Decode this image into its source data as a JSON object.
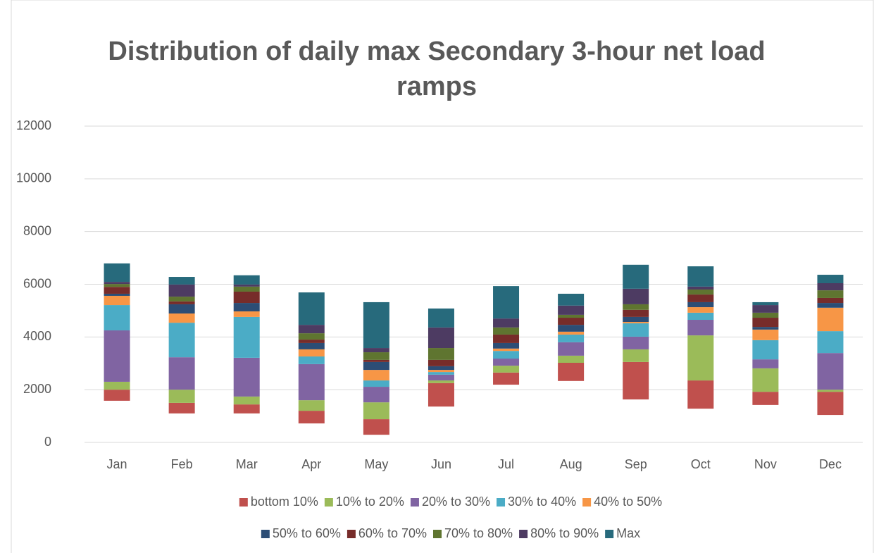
{
  "chart_data": {
    "type": "floating_stacked_bar",
    "title": "Distribution of daily max Secondary 3-hour net load ramps",
    "categories": [
      "Jan",
      "Feb",
      "Mar",
      "Apr",
      "May",
      "Jun",
      "Jul",
      "Aug",
      "Sep",
      "Oct",
      "Nov",
      "Dec"
    ],
    "base": [
      1580,
      1100,
      1100,
      720,
      290,
      1360,
      2190,
      2330,
      1630,
      1280,
      1420,
      1040
    ],
    "series": [
      {
        "name": "bottom 10%",
        "color": "#c0504d",
        "values": [
          420,
          400,
          340,
          480,
          590,
          890,
          460,
          690,
          1420,
          1070,
          500,
          880
        ]
      },
      {
        "name": "10% to 20%",
        "color": "#9bbb59",
        "values": [
          300,
          500,
          300,
          400,
          640,
          100,
          260,
          270,
          480,
          1710,
          890,
          80
        ]
      },
      {
        "name": "20% to 30%",
        "color": "#8064a2",
        "values": [
          1950,
          1230,
          1470,
          1370,
          590,
          220,
          270,
          510,
          480,
          590,
          340,
          1390
        ]
      },
      {
        "name": "30% to 40%",
        "color": "#4bacc6",
        "values": [
          960,
          1310,
          1550,
          290,
          240,
          100,
          290,
          290,
          510,
          270,
          730,
          830
        ]
      },
      {
        "name": "40% to 50%",
        "color": "#f79646",
        "values": [
          350,
          350,
          210,
          270,
          400,
          80,
          90,
          110,
          50,
          210,
          400,
          890
        ]
      },
      {
        "name": "50% to 60%",
        "color": "#2c4d75",
        "values": [
          80,
          350,
          320,
          240,
          300,
          140,
          210,
          260,
          190,
          190,
          100,
          180
        ]
      },
      {
        "name": "60% to 70%",
        "color": "#772c2a",
        "values": [
          260,
          110,
          430,
          130,
          80,
          240,
          320,
          270,
          270,
          290,
          350,
          190
        ]
      },
      {
        "name": "70% to 80%",
        "color": "#5f7530",
        "values": [
          110,
          180,
          190,
          240,
          290,
          450,
          270,
          110,
          210,
          190,
          190,
          290
        ]
      },
      {
        "name": "80% to 90%",
        "color": "#4d3b62",
        "values": [
          80,
          460,
          80,
          320,
          160,
          780,
          340,
          350,
          590,
          110,
          290,
          270
        ]
      },
      {
        "name": "Max",
        "color": "#276a7c",
        "values": [
          700,
          290,
          350,
          1230,
          1740,
          720,
          1230,
          450,
          910,
          770,
          110,
          320
        ]
      }
    ],
    "ylim": [
      0,
      12000
    ],
    "yticks": [
      0,
      2000,
      4000,
      6000,
      8000,
      10000,
      12000
    ],
    "grid": true
  }
}
